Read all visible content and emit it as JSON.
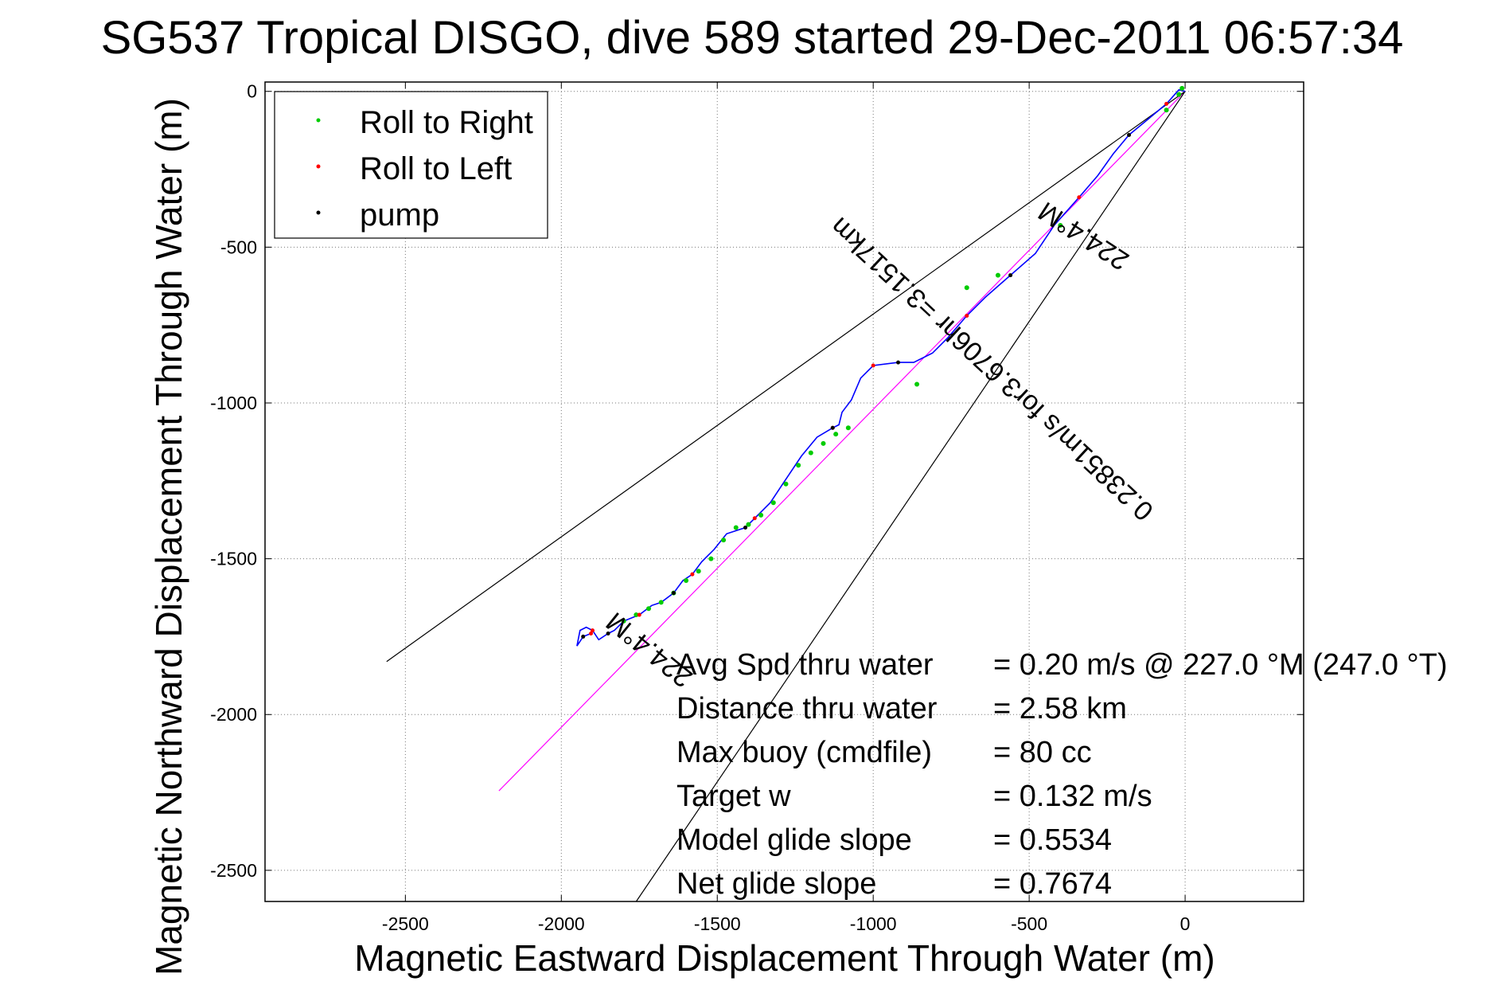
{
  "chart_data": {
    "type": "scatter",
    "title": "SG537 Tropical DISGO, dive 589 started 29-Dec-2011 06:57:34",
    "xlabel": "Magnetic Eastward Displacement Through Water (m)",
    "ylabel": "Magnetic Northward Displacement Through Water (m)",
    "xlim": [
      -2950,
      380
    ],
    "ylim": [
      -2600,
      30
    ],
    "xticks": [
      -2500,
      -2000,
      -1500,
      -1000,
      -500,
      0
    ],
    "yticks": [
      0,
      -500,
      -1000,
      -1500,
      -2000,
      -2500
    ],
    "grid": true,
    "legend": {
      "location": "top-left",
      "entries": [
        {
          "label": "Roll to Right",
          "color": "#00cc00"
        },
        {
          "label": "Roll to Left",
          "color": "#ff0000"
        },
        {
          "label": "pump",
          "color": "#000000"
        }
      ]
    },
    "series": [
      {
        "name": "track",
        "color": "#0000ff",
        "x": [
          0,
          -20,
          -60,
          -120,
          -180,
          -230,
          -280,
          -340,
          -420,
          -480,
          -560,
          -640,
          -700,
          -760,
          -810,
          -870,
          -920,
          -1000,
          -1040,
          -1070,
          -1100,
          -1110,
          -1130,
          -1180,
          -1230,
          -1290,
          -1330,
          -1380,
          -1410,
          -1470,
          -1510,
          -1550,
          -1580,
          -1610,
          -1640,
          -1680,
          -1710,
          -1750,
          -1800,
          -1830,
          -1850,
          -1880,
          -1900,
          -1920,
          -1940,
          -1950,
          -1930,
          -1905
        ],
        "y": [
          0,
          5,
          -40,
          -90,
          -140,
          -200,
          -270,
          -340,
          -430,
          -520,
          -590,
          -660,
          -720,
          -790,
          -840,
          -870,
          -870,
          -880,
          -920,
          -990,
          -1030,
          -1070,
          -1080,
          -1110,
          -1170,
          -1260,
          -1320,
          -1370,
          -1400,
          -1420,
          -1470,
          -1510,
          -1550,
          -1570,
          -1610,
          -1640,
          -1650,
          -1680,
          -1700,
          -1730,
          -1740,
          -1760,
          -1730,
          -1720,
          -1730,
          -1780,
          -1750,
          -1740
        ]
      },
      {
        "name": "roll-to-right segments",
        "color": "#00cc00",
        "x": [
          -1800,
          -1760,
          -1720,
          -1680,
          -1640,
          -1600,
          -1560,
          -1520,
          -1480,
          -1440,
          -1400,
          -1360,
          -1320,
          -1280,
          -1240,
          -1200,
          -1160,
          -1120,
          -1080,
          -860,
          -700,
          -600,
          -400,
          -60,
          -20,
          -10
        ],
        "y": [
          -1700,
          -1680,
          -1660,
          -1640,
          -1610,
          -1570,
          -1540,
          -1500,
          -1440,
          -1400,
          -1390,
          -1360,
          -1320,
          -1260,
          -1200,
          -1160,
          -1130,
          -1100,
          -1080,
          -940,
          -630,
          -590,
          -430,
          -60,
          -10,
          10
        ]
      },
      {
        "name": "magenta reference",
        "color": "#ff00ff",
        "x": [
          -2200,
          0
        ],
        "y": [
          -2245,
          0
        ]
      },
      {
        "name": "heading line upper",
        "color": "#000000",
        "x": [
          -2560,
          0
        ],
        "y": [
          -1830,
          0
        ]
      },
      {
        "name": "heading line lower",
        "color": "#000000",
        "x": [
          -1760,
          0
        ],
        "y": [
          -2600,
          0
        ]
      }
    ],
    "annotations": [
      {
        "text": "224.4°M",
        "x": -1700,
        "y": -1770,
        "angle": 219
      },
      {
        "text": "0.23851m/s for3.6706hr =3.1517km",
        "x": -600,
        "y": -870,
        "angle": 223
      },
      {
        "text": "224.4°M",
        "x": -310,
        "y": -440,
        "angle": 213
      }
    ],
    "stats": [
      {
        "label": "Avg Spd thru water",
        "value": "=  0.20 m/s @ 227.0 °M (247.0 °T)"
      },
      {
        "label": "Distance thru water",
        "value": "=  2.58 km"
      },
      {
        "label": "Max buoy (cmdfile)",
        "value": "= 80 cc"
      },
      {
        "label": "Target w",
        "value": "= 0.132 m/s"
      },
      {
        "label": "Model glide slope",
        "value": "= 0.5534"
      },
      {
        "label": "Net glide slope",
        "value": "= 0.7674"
      }
    ]
  }
}
